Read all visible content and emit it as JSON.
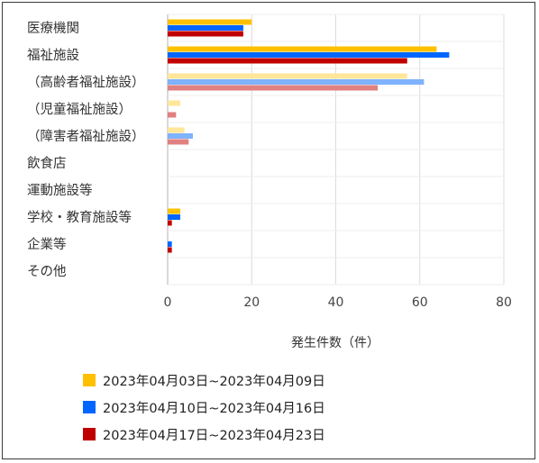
{
  "chart_data": {
    "type": "bar",
    "orientation": "horizontal",
    "categories": [
      "医療機関",
      "福祉施設",
      "（高齢者福祉施設）",
      "（児童福祉施設）",
      "（障害者福祉施設）",
      "飲食店",
      "運動施設等",
      "学校・教育施設等",
      "企業等",
      "その他"
    ],
    "series": [
      {
        "name": "2023年04月03日~2023年04月09日",
        "color": "#ffc000",
        "values": [
          20,
          64,
          57,
          3,
          4,
          0,
          0,
          3,
          0,
          0
        ]
      },
      {
        "name": "2023年04月10日~2023年04月16日",
        "color": "#0066ff",
        "values": [
          18,
          67,
          61,
          0,
          6,
          0,
          0,
          3,
          1,
          0
        ]
      },
      {
        "name": "2023年04月17日~2023年04月23日",
        "color": "#c00000",
        "values": [
          18,
          57,
          50,
          2,
          5,
          0,
          0,
          1,
          1,
          0
        ]
      }
    ],
    "muted_categories": [
      2,
      3,
      4
    ],
    "muted_colors": [
      "#ffe699",
      "#7fb2ff",
      "#e08080"
    ],
    "xlabel": "発生件数（件）",
    "xlim": [
      0,
      80
    ],
    "xticks": [
      0,
      20,
      40,
      60,
      80
    ],
    "grid": "vertical",
    "legend_position": "bottom"
  }
}
